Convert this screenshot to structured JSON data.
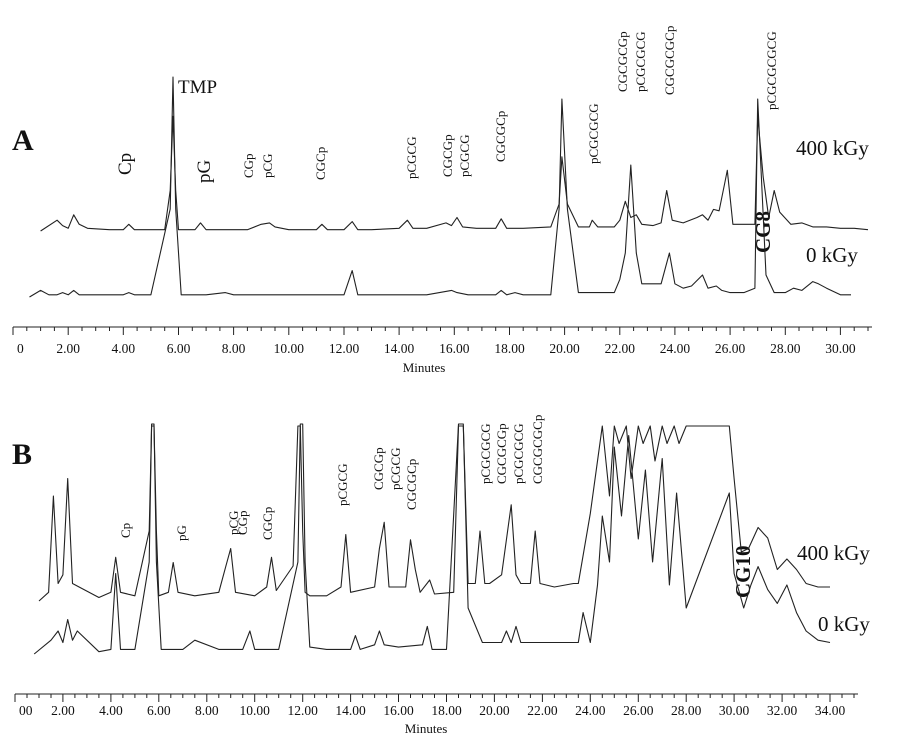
{
  "chart_data": [
    {
      "panel": "A",
      "type": "line",
      "xlabel": "Minutes",
      "xlim": [
        0,
        31
      ],
      "x_tick_labels": [
        "0",
        "2.00",
        "4.00",
        "6.00",
        "8.00",
        "10.00",
        "12.00",
        "14.00",
        "16.00",
        "18.00",
        "20.00",
        "22.00",
        "24.00",
        "26.00",
        "28.00",
        "30.00"
      ],
      "series": [
        {
          "name": "400 kGy",
          "x": [
            1.0,
            1.6,
            1.8,
            2.0,
            2.2,
            2.4,
            2.7,
            3.5,
            4.0,
            4.2,
            4.4,
            5.0,
            5.5,
            5.7,
            5.8,
            5.9,
            6.0,
            6.3,
            6.6,
            6.8,
            7.0,
            7.5,
            8.5,
            9.0,
            9.3,
            9.5,
            10.0,
            10.5,
            11.0,
            11.2,
            11.4,
            12.0,
            12.3,
            12.5,
            13.0,
            14.0,
            14.3,
            14.5,
            15.0,
            15.7,
            15.9,
            16.1,
            16.3,
            16.8,
            17.5,
            17.7,
            17.9,
            18.5,
            19.5,
            19.8,
            19.9,
            20.1,
            20.5,
            20.9,
            21.0,
            21.2,
            21.8,
            22.0,
            22.2,
            22.4,
            22.6,
            22.8,
            23.2,
            23.5,
            23.7,
            23.9,
            24.3,
            24.8,
            25.0,
            25.2,
            25.4,
            25.6,
            25.8,
            25.9,
            26.1,
            26.5,
            26.9,
            27.0,
            27.2,
            27.4,
            27.6,
            27.8,
            28.2,
            28.6,
            29.0,
            29.5,
            30.0,
            30.5,
            31.0
          ],
          "y": [
            0,
            0.08,
            0.04,
            0.02,
            0.12,
            0.05,
            0.02,
            0.01,
            0.01,
            0.05,
            0.01,
            0.01,
            0.01,
            0.3,
            0.85,
            0.3,
            0.01,
            0.01,
            0.01,
            0.06,
            0.01,
            0.01,
            0.01,
            0.05,
            0.06,
            0.03,
            0.01,
            0.01,
            0.01,
            0.05,
            0.01,
            0.01,
            0.07,
            0.01,
            0.01,
            0.02,
            0.08,
            0.02,
            0.02,
            0.06,
            0.04,
            0.1,
            0.03,
            0.02,
            0.02,
            0.09,
            0.02,
            0.02,
            0.03,
            0.2,
            0.55,
            0.2,
            0.03,
            0.03,
            0.08,
            0.03,
            0.03,
            0.08,
            0.22,
            0.1,
            0.12,
            0.05,
            0.04,
            0.06,
            0.3,
            0.08,
            0.06,
            0.1,
            0.12,
            0.08,
            0.16,
            0.15,
            0.35,
            0.45,
            0.05,
            0.05,
            0.05,
            0.85,
            0.4,
            0.1,
            0.3,
            0.14,
            0.05,
            0.06,
            0.03,
            0.03,
            0.02,
            0.02,
            0.01
          ]
        },
        {
          "name": "0 kGy",
          "x": [
            0.6,
            1.0,
            1.3,
            1.6,
            1.8,
            2.0,
            2.2,
            2.4,
            3.0,
            4.0,
            4.2,
            4.4,
            5.0,
            5.7,
            5.8,
            5.9,
            6.1,
            7.0,
            7.7,
            8.0,
            9.0,
            9.8,
            10.5,
            12.0,
            12.3,
            12.5,
            13.5,
            15.0,
            15.9,
            16.1,
            16.5,
            17.5,
            17.7,
            17.9,
            18.2,
            18.5,
            19.5,
            19.8,
            19.9,
            20.1,
            20.5,
            21.8,
            22.0,
            22.2,
            22.4,
            22.6,
            22.8,
            23.5,
            23.8,
            24.0,
            24.3,
            24.6,
            25.0,
            25.2,
            25.5,
            25.7,
            26.0,
            26.5,
            26.9,
            27.0,
            27.3,
            27.6,
            28.0,
            28.3,
            28.6,
            29.0,
            29.2,
            29.5,
            30.0,
            30.5
          ],
          "y": [
            0,
            0.03,
            0.01,
            0.01,
            0.02,
            0.01,
            0.03,
            0.01,
            0.01,
            0.01,
            0.02,
            0.01,
            0.01,
            0.4,
            1.0,
            0.4,
            0.01,
            0.01,
            0.02,
            0.01,
            0.01,
            0.01,
            0.01,
            0.01,
            0.12,
            0.01,
            0.01,
            0.01,
            0.03,
            0.02,
            0.01,
            0.01,
            0.03,
            0.01,
            0.02,
            0.01,
            0.01,
            0.4,
            0.9,
            0.4,
            0.02,
            0.02,
            0.08,
            0.2,
            0.6,
            0.2,
            0.06,
            0.06,
            0.2,
            0.06,
            0.04,
            0.05,
            0.1,
            0.04,
            0.05,
            0.03,
            0.02,
            0.02,
            0.04,
            0.9,
            0.1,
            0.02,
            0.02,
            0.04,
            0.03,
            0.07,
            0.06,
            0.04,
            0.01,
            0.01
          ]
        }
      ],
      "series_labels": [
        "400 kGy",
        "0 kGy"
      ],
      "peak_labels": [
        "Cp",
        "TMP",
        "pG",
        "CGp",
        "pCG",
        "CGCp",
        "pCGCG",
        "CGCGp",
        "pCGCG",
        "CGCGCp",
        "pCGCGCG",
        "CGCGCGp",
        "pCGCGCG",
        "CGCGCGCp",
        "pCGCGCGCG",
        "CG8"
      ]
    },
    {
      "panel": "B",
      "type": "line",
      "xlabel": "Minutes",
      "xlim": [
        0,
        35
      ],
      "x_tick_labels": [
        "00",
        "2.00",
        "4.00",
        "6.00",
        "8.00",
        "10.00",
        "12.00",
        "14.00",
        "16.00",
        "18.00",
        "20.00",
        "22.00",
        "24.00",
        "26.00",
        "28.00",
        "30.00",
        "32.00",
        "34.00"
      ],
      "series": [
        {
          "name": "400 kGy",
          "x": [
            1.0,
            1.4,
            1.6,
            1.8,
            2.0,
            2.2,
            2.4,
            3.5,
            4.0,
            4.2,
            4.4,
            5.0,
            5.6,
            5.7,
            5.8,
            5.9,
            6.0,
            6.4,
            6.6,
            6.8,
            7.5,
            8.5,
            8.8,
            9.0,
            9.2,
            10.0,
            10.5,
            10.7,
            10.9,
            11.6,
            11.8,
            11.9,
            12.0,
            12.1,
            12.3,
            13.0,
            13.6,
            13.8,
            14.0,
            15.0,
            15.2,
            15.4,
            15.6,
            16.3,
            16.5,
            16.7,
            16.9,
            17.3,
            17.5,
            18.3,
            18.5,
            18.7,
            18.9,
            19.2,
            19.4,
            19.6,
            19.8,
            20.3,
            20.5,
            20.7,
            20.9,
            21.1,
            21.5,
            21.7,
            21.9,
            22.5,
            23.3,
            23.5,
            24.0,
            24.5,
            24.8,
            25.0,
            25.2,
            25.5,
            25.7,
            26.0,
            26.2,
            26.5,
            26.7,
            27.0,
            27.2,
            27.5,
            27.7,
            28.0,
            29.8,
            30.0,
            30.3,
            30.6,
            31.0,
            31.4,
            31.8,
            32.2,
            32.6,
            33.0,
            33.5,
            34.0
          ],
          "y": [
            0,
            0.05,
            0.6,
            0.1,
            0.15,
            0.7,
            0.1,
            0.02,
            0.05,
            0.25,
            0.05,
            0.03,
            0.4,
            1.0,
            1.0,
            0.4,
            0.03,
            0.05,
            0.22,
            0.05,
            0.03,
            0.05,
            0.2,
            0.3,
            0.05,
            0.03,
            0.08,
            0.25,
            0.06,
            0.2,
            1.0,
            1.0,
            0.4,
            0.05,
            0.03,
            0.03,
            0.08,
            0.38,
            0.05,
            0.08,
            0.3,
            0.45,
            0.08,
            0.08,
            0.35,
            0.18,
            0.05,
            0.12,
            0.04,
            0.05,
            1.0,
            1.0,
            0.1,
            0.1,
            0.4,
            0.1,
            0.1,
            0.15,
            0.35,
            0.55,
            0.15,
            0.1,
            0.1,
            0.4,
            0.1,
            0.08,
            0.1,
            0.1,
            0.5,
            1.0,
            0.6,
            1.0,
            0.9,
            1.0,
            0.7,
            1.0,
            0.9,
            1.0,
            0.8,
            1.0,
            0.9,
            1.0,
            0.9,
            1.0,
            1.0,
            0.7,
            0.28,
            0.3,
            0.42,
            0.36,
            0.18,
            0.24,
            0.18,
            0.1,
            0.08,
            0.08
          ]
        },
        {
          "name": "0 kGy",
          "x": [
            0.8,
            1.5,
            1.8,
            2.0,
            2.2,
            2.4,
            2.6,
            3.5,
            4.0,
            4.2,
            4.4,
            5.0,
            5.6,
            5.7,
            5.8,
            5.9,
            6.1,
            7.0,
            7.5,
            8.5,
            9.5,
            9.8,
            10.0,
            11.0,
            11.8,
            11.9,
            12.0,
            12.1,
            12.3,
            13.0,
            14.0,
            14.2,
            14.4,
            15.0,
            15.2,
            15.4,
            16.0,
            17.0,
            17.2,
            17.4,
            18.0,
            18.5,
            18.7,
            18.9,
            19.5,
            20.3,
            20.5,
            20.7,
            20.9,
            21.1,
            21.5,
            21.9,
            22.5,
            23.0,
            23.5,
            23.7,
            24.0,
            24.3,
            24.5,
            24.8,
            25.0,
            25.3,
            25.6,
            26.0,
            26.3,
            26.6,
            27.0,
            27.3,
            27.6,
            28.0,
            29.8,
            30.0,
            30.4,
            30.7,
            31.0,
            31.4,
            31.8,
            32.2,
            32.6,
            33.0,
            33.5,
            34.0
          ],
          "y": [
            0,
            0.06,
            0.1,
            0.05,
            0.15,
            0.06,
            0.1,
            0.01,
            0.02,
            0.35,
            0.02,
            0.02,
            0.4,
            1.0,
            1.0,
            0.4,
            0.02,
            0.02,
            0.06,
            0.02,
            0.02,
            0.1,
            0.02,
            0.02,
            0.4,
            1.0,
            1.0,
            0.4,
            0.03,
            0.02,
            0.02,
            0.08,
            0.02,
            0.04,
            0.1,
            0.04,
            0.03,
            0.04,
            0.12,
            0.02,
            0.02,
            1.0,
            1.0,
            0.2,
            0.05,
            0.05,
            0.1,
            0.05,
            0.12,
            0.05,
            0.05,
            0.05,
            0.05,
            0.05,
            0.05,
            0.18,
            0.05,
            0.3,
            0.6,
            0.4,
            0.9,
            0.6,
            0.95,
            0.5,
            0.8,
            0.4,
            0.85,
            0.3,
            0.7,
            0.2,
            0.7,
            0.35,
            0.2,
            0.3,
            0.38,
            0.28,
            0.22,
            0.3,
            0.18,
            0.1,
            0.06,
            0.05
          ]
        }
      ],
      "series_labels": [
        "400 kGy",
        "0 kGy"
      ],
      "peak_labels": [
        "Cp",
        "pG",
        "CGp",
        "pCG",
        "CGCp",
        "pCGCG",
        "CGCGp",
        "pCGCG",
        "CGCGCp",
        "pCGCGCG",
        "CGCGCGp",
        "pCGCGCG",
        "CGCGCGCp",
        "CG10"
      ]
    }
  ],
  "panels": {
    "a": {
      "letter": "A"
    },
    "b": {
      "letter": "B"
    }
  }
}
